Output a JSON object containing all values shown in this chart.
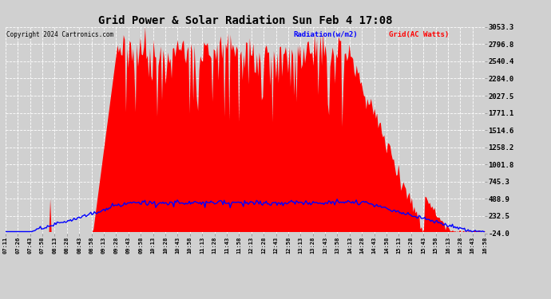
{
  "title": "Grid Power & Solar Radiation Sun Feb 4 17:08",
  "copyright": "Copyright 2024 Cartronics.com",
  "legend_radiation": "Radiation(w/m2)",
  "legend_grid": "Grid(AC Watts)",
  "right_yticks": [
    3053.3,
    2796.8,
    2540.4,
    2284.0,
    2027.5,
    1771.1,
    1514.6,
    1258.2,
    1001.8,
    745.3,
    488.9,
    232.5,
    -24.0
  ],
  "xlabels": [
    "07:11",
    "07:26",
    "07:43",
    "07:58",
    "08:13",
    "08:28",
    "08:43",
    "08:58",
    "09:13",
    "09:28",
    "09:43",
    "09:58",
    "10:13",
    "10:28",
    "10:43",
    "10:58",
    "11:13",
    "11:28",
    "11:43",
    "11:58",
    "12:13",
    "12:28",
    "12:43",
    "12:58",
    "13:13",
    "13:28",
    "13:43",
    "13:58",
    "14:13",
    "14:28",
    "14:43",
    "14:58",
    "15:13",
    "15:28",
    "15:43",
    "15:58",
    "16:13",
    "16:28",
    "16:43",
    "16:58"
  ],
  "background_color": "#d0d0d0",
  "grid_color": "#ffffff",
  "fill_color": "#ff0000",
  "line_color": "#0000ff",
  "title_color": "#000000",
  "copyright_color": "#000000",
  "radiation_legend_color": "#0000ff",
  "grid_legend_color": "#ff0000",
  "ymin": -24.0,
  "ymax": 3053.3,
  "figwidth": 6.9,
  "figheight": 3.75,
  "dpi": 100
}
